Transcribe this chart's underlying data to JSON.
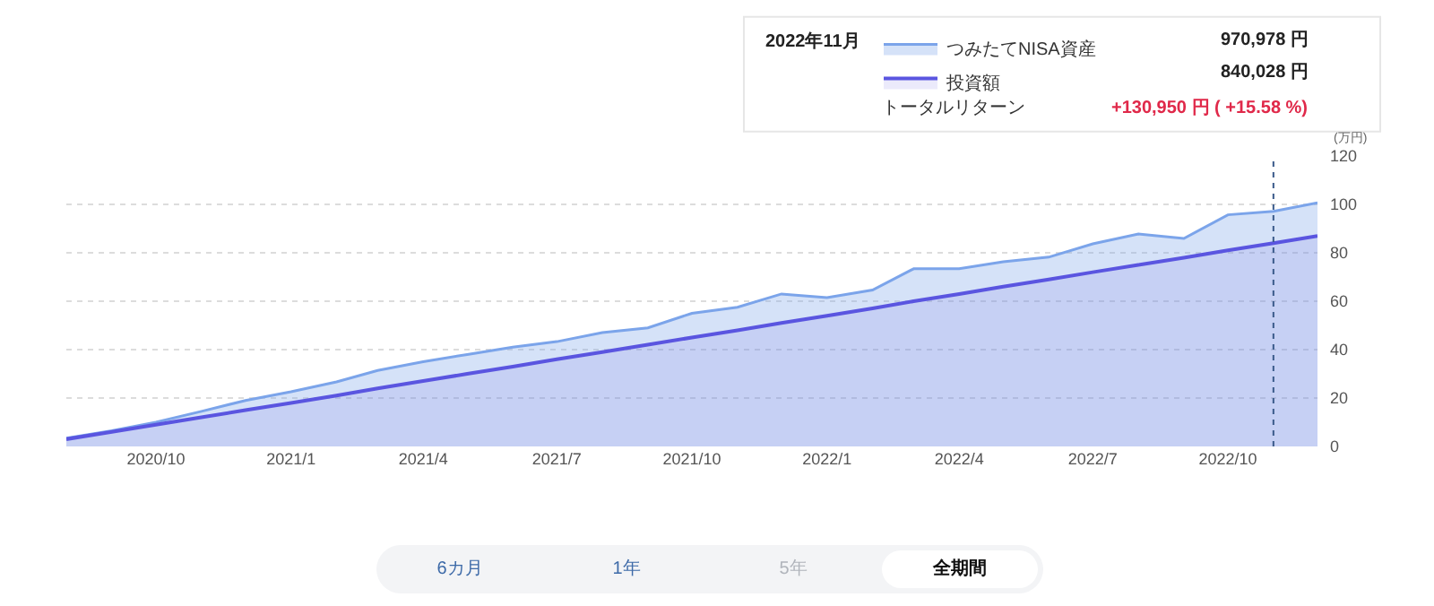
{
  "chart_data": {
    "type": "area",
    "ylabel": "(万円)",
    "x": [
      "2020-08",
      "2020-09",
      "2020-10",
      "2020-11",
      "2020-12",
      "2021-01",
      "2021-02",
      "2021-03",
      "2021-04",
      "2021-05",
      "2021-06",
      "2021-07",
      "2021-08",
      "2021-09",
      "2021-10",
      "2021-11",
      "2021-12",
      "2022-01",
      "2022-02",
      "2022-03",
      "2022-04",
      "2022-05",
      "2022-06",
      "2022-07",
      "2022-08",
      "2022-09",
      "2022-10",
      "2022-11",
      "2022-12"
    ],
    "series": [
      {
        "name": "つみたてNISA資産",
        "color": "#7ba4ea",
        "values": [
          3.4,
          6.5,
          10,
          14.5,
          19,
          22.6,
          26.7,
          31.4,
          35,
          38,
          41,
          43.3,
          47,
          49,
          55,
          57.5,
          63,
          61.5,
          64.6,
          73.4,
          73.4,
          76.3,
          78.2,
          83.7,
          87.8,
          85.9,
          95.7,
          97.1,
          100.7
        ]
      },
      {
        "name": "投資額",
        "color": "#5a55e0",
        "values": [
          3,
          6,
          9,
          12,
          15,
          18,
          21,
          24,
          27,
          30,
          33,
          36,
          39,
          42,
          45,
          48,
          51,
          54,
          57,
          60,
          63,
          66,
          69,
          72,
          75,
          78,
          81,
          84,
          87
        ]
      }
    ],
    "xlim": [
      "2020-08",
      "2022-12"
    ],
    "xticks": [
      {
        "value": "2020-10",
        "label": "2020/10"
      },
      {
        "value": "2021-01",
        "label": "2021/1"
      },
      {
        "value": "2021-04",
        "label": "2021/4"
      },
      {
        "value": "2021-07",
        "label": "2021/7"
      },
      {
        "value": "2021-10",
        "label": "2021/10"
      },
      {
        "value": "2022-01",
        "label": "2022/1"
      },
      {
        "value": "2022-04",
        "label": "2022/4"
      },
      {
        "value": "2022-07",
        "label": "2022/7"
      },
      {
        "value": "2022-10",
        "label": "2022/10"
      }
    ],
    "ylim": [
      0,
      120
    ],
    "yticks": [
      0,
      20,
      40,
      60,
      80,
      100,
      120
    ],
    "grid": "y",
    "legend": "top right",
    "marker": "none",
    "line_style": "solid",
    "ref_lines": [
      {
        "axis": "x",
        "value": "2022-11",
        "color": "#3a5a8a",
        "line_style": "dotted"
      }
    ],
    "annotations": [
      "2022年11月",
      "970,978 円",
      "840,028 円",
      "トータルリターン",
      "+130,950 円 ( +15.58 %)",
      "6カ月",
      "1年",
      "5年",
      "全期間"
    ]
  }
}
